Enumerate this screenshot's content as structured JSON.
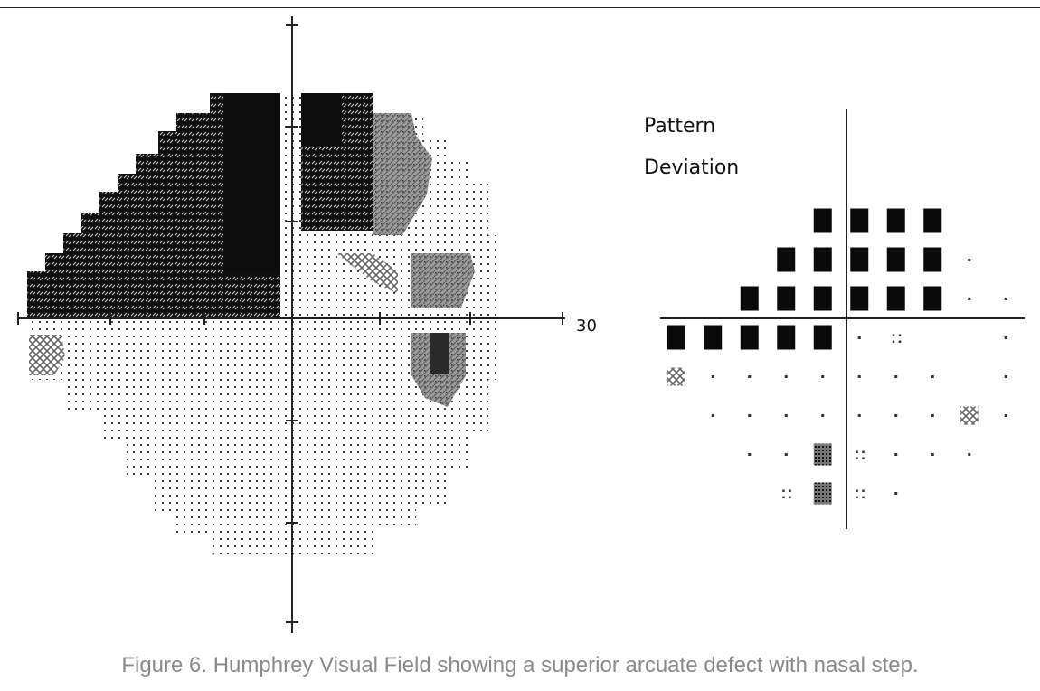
{
  "figure": {
    "caption": "Figure 6. Humphrey Visual Field showing a superior arcuate defect with nasal step.",
    "axis_label": "30",
    "pattern_deviation_title": [
      "Pattern",
      "Deviation"
    ]
  },
  "colors": {
    "defect_black": "#111111",
    "defect_dark": "#3a3a3a",
    "defect_mid": "#8a8a8a",
    "dots": "#444444",
    "caption": "#8a8a8a"
  },
  "pattern_deviation": {
    "rows": [
      {
        "y": 15,
        "cells": [
          [
            "-3",
            "sq"
          ],
          [
            "3",
            "sq"
          ],
          [
            "9",
            "sq"
          ],
          [
            "15",
            "sq"
          ]
        ]
      },
      {
        "y": 9,
        "cells": [
          [
            "-9",
            "sq"
          ],
          [
            "-3",
            "sq"
          ],
          [
            "3",
            "sq"
          ],
          [
            "9",
            "sq"
          ],
          [
            "15",
            "sq"
          ],
          [
            "21",
            "dot"
          ]
        ]
      },
      {
        "y": 3,
        "cells": [
          [
            "-15",
            "sq"
          ],
          [
            "-9",
            "sq"
          ],
          [
            "-3",
            "sq"
          ],
          [
            "3",
            "sq"
          ],
          [
            "9",
            "sq"
          ],
          [
            "15",
            "sq"
          ],
          [
            "21",
            "dot"
          ],
          [
            "27",
            "dot"
          ]
        ]
      },
      {
        "y": -3,
        "cells": [
          [
            "-27",
            "sq"
          ],
          [
            "-21",
            "sq"
          ],
          [
            "-15",
            "sq"
          ],
          [
            "-9",
            "sq"
          ],
          [
            "-3",
            "sq"
          ],
          [
            "3",
            "dot"
          ],
          [
            "9",
            "grid4"
          ],
          [
            "27",
            "dot"
          ]
        ]
      },
      {
        "y": -9,
        "cells": [
          [
            "-27",
            "cross"
          ],
          [
            "-21",
            "dot"
          ],
          [
            "-15",
            "dot"
          ],
          [
            "-9",
            "dot"
          ],
          [
            "-3",
            "dot"
          ],
          [
            "3",
            "dot"
          ],
          [
            "9",
            "dot"
          ],
          [
            "15",
            "dot"
          ],
          [
            "27",
            "dot"
          ]
        ]
      },
      {
        "y": -15,
        "cells": [
          [
            "-21",
            "dot"
          ],
          [
            "-15",
            "dot"
          ],
          [
            "-9",
            "dot"
          ],
          [
            "-3",
            "dot"
          ],
          [
            "3",
            "dot"
          ],
          [
            "9",
            "dot"
          ],
          [
            "15",
            "dot"
          ],
          [
            "21",
            "cross"
          ],
          [
            "27",
            "dot"
          ]
        ]
      },
      {
        "y": -21,
        "cells": [
          [
            "-15",
            "dot"
          ],
          [
            "-9",
            "dot"
          ],
          [
            "-3",
            "dense"
          ],
          [
            "3",
            "grid4"
          ],
          [
            "9",
            "dot"
          ],
          [
            "15",
            "dot"
          ],
          [
            "21",
            "dot"
          ]
        ]
      },
      {
        "y": -27,
        "cells": [
          [
            "-9",
            "grid4"
          ],
          [
            "-3",
            "dense"
          ],
          [
            "3",
            "grid4"
          ],
          [
            "9",
            "dot"
          ]
        ]
      }
    ]
  }
}
